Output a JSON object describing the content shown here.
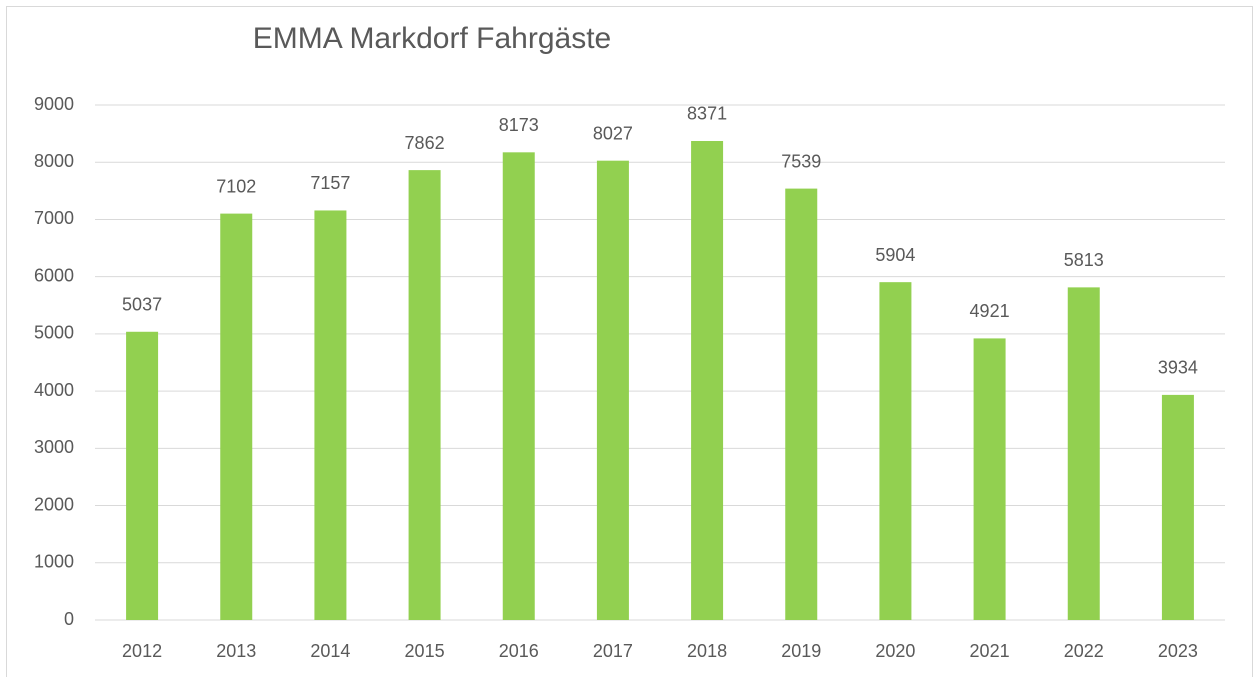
{
  "chart_data": {
    "type": "bar",
    "title": "EMMA Markdorf Fahrgäste",
    "categories": [
      "2012",
      "2013",
      "2014",
      "2015",
      "2016",
      "2017",
      "2018",
      "2019",
      "2020",
      "2021",
      "2022",
      "2023"
    ],
    "values": [
      5037,
      7102,
      7157,
      7862,
      8173,
      8027,
      8371,
      7539,
      5904,
      4921,
      5813,
      3934
    ],
    "color": "#92d050",
    "ylim": [
      0,
      9000
    ],
    "yticks": [
      0,
      1000,
      2000,
      3000,
      4000,
      5000,
      6000,
      7000,
      8000,
      9000
    ],
    "grid": true,
    "data_labels": true
  }
}
